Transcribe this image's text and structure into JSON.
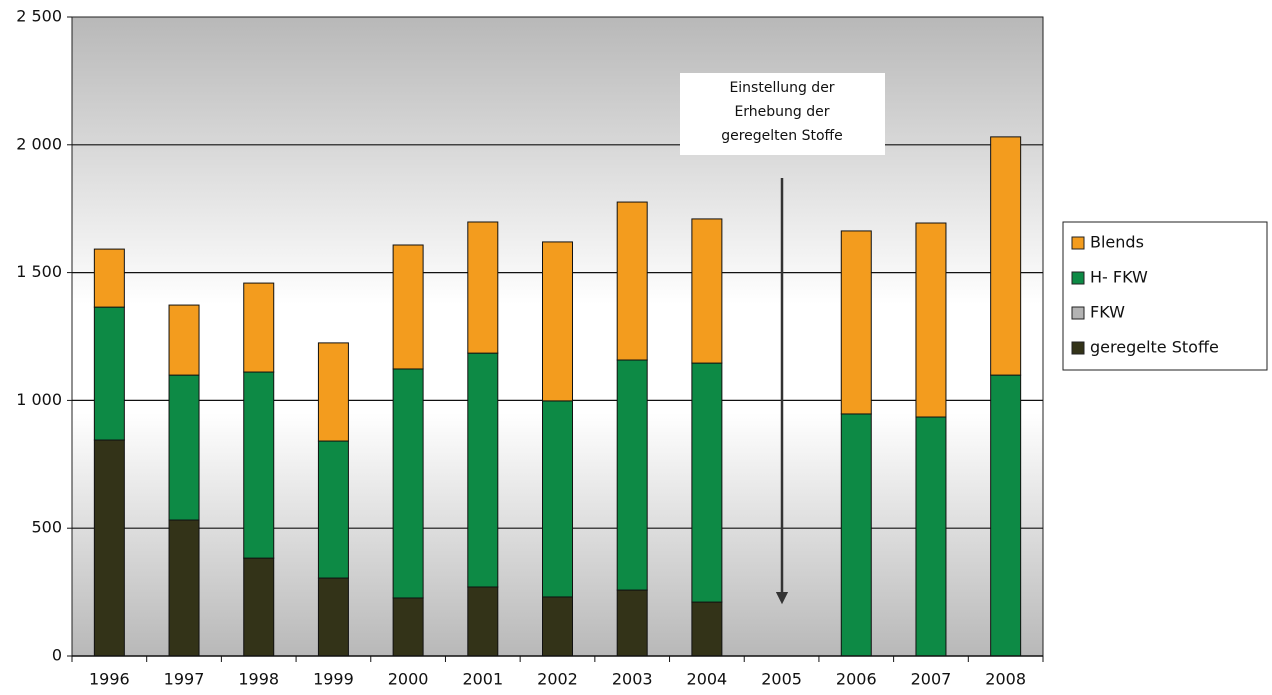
{
  "chart_data": {
    "type": "stacked_bar",
    "categories": [
      "1996",
      "1997",
      "1998",
      "1999",
      "2000",
      "2001",
      "2002",
      "2003",
      "2004",
      "2005",
      "2006",
      "2007",
      "2008"
    ],
    "series": [
      {
        "name": "Blends",
        "color": "#f39c1e",
        "values": [
          227,
          274,
          348,
          384,
          485,
          513,
          622,
          618,
          564,
          null,
          716,
          759,
          932
        ]
      },
      {
        "name": "H- FKW",
        "color": "#0d8a45",
        "values": [
          520,
          567,
          728,
          536,
          896,
          915,
          767,
          900,
          935,
          null,
          947,
          935,
          1099
        ]
      },
      {
        "name": "FKW",
        "color": "#b3b3b3",
        "values": [
          0,
          0,
          0,
          0,
          0,
          0,
          0,
          0,
          0,
          null,
          0,
          0,
          0
        ]
      },
      {
        "name": "geregelte Stoffe",
        "color": "#333318",
        "values": [
          845,
          532,
          383,
          305,
          227,
          270,
          231,
          258,
          211,
          null,
          0,
          0,
          0
        ]
      }
    ],
    "ylim": [
      0,
      2500
    ],
    "yticks": [
      0,
      500,
      {
        "value": 1000,
        "label": "1 000"
      },
      {
        "value": 1500,
        "label": "1 500"
      },
      {
        "value": 2000,
        "label": "2 000"
      },
      {
        "value": 2500,
        "label": "2 500"
      }
    ],
    "grid": true,
    "legend": "right",
    "annotation": {
      "lines": [
        "Einstellung der",
        "Erhebung der",
        "geregelten Stoffe"
      ]
    }
  }
}
